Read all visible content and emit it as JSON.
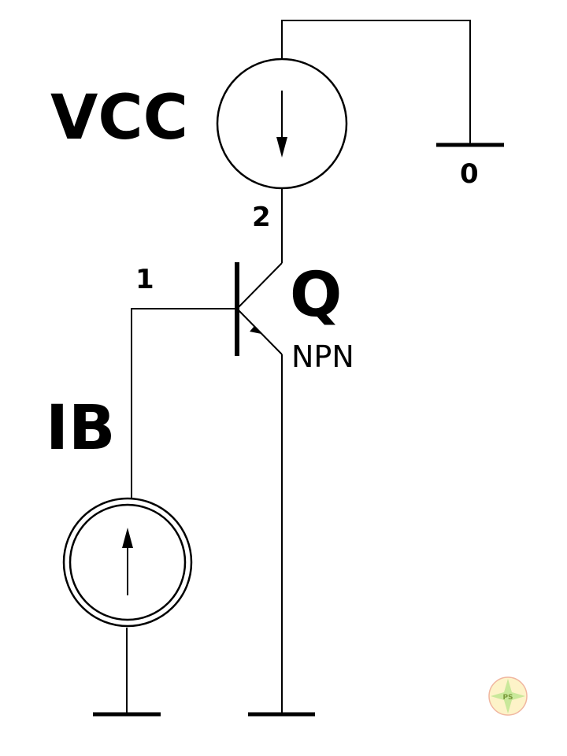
{
  "circuit": {
    "components": {
      "vcc": {
        "label": "VCC",
        "type": "current-source",
        "direction": "down"
      },
      "ib": {
        "label": "IB",
        "type": "current-source",
        "direction": "up"
      },
      "q": {
        "label": "Q",
        "model": "NPN",
        "type": "bjt-npn"
      }
    },
    "nodes": {
      "n0": "0",
      "n1": "1",
      "n2": "2"
    },
    "watermark": {
      "text": "PS"
    }
  }
}
